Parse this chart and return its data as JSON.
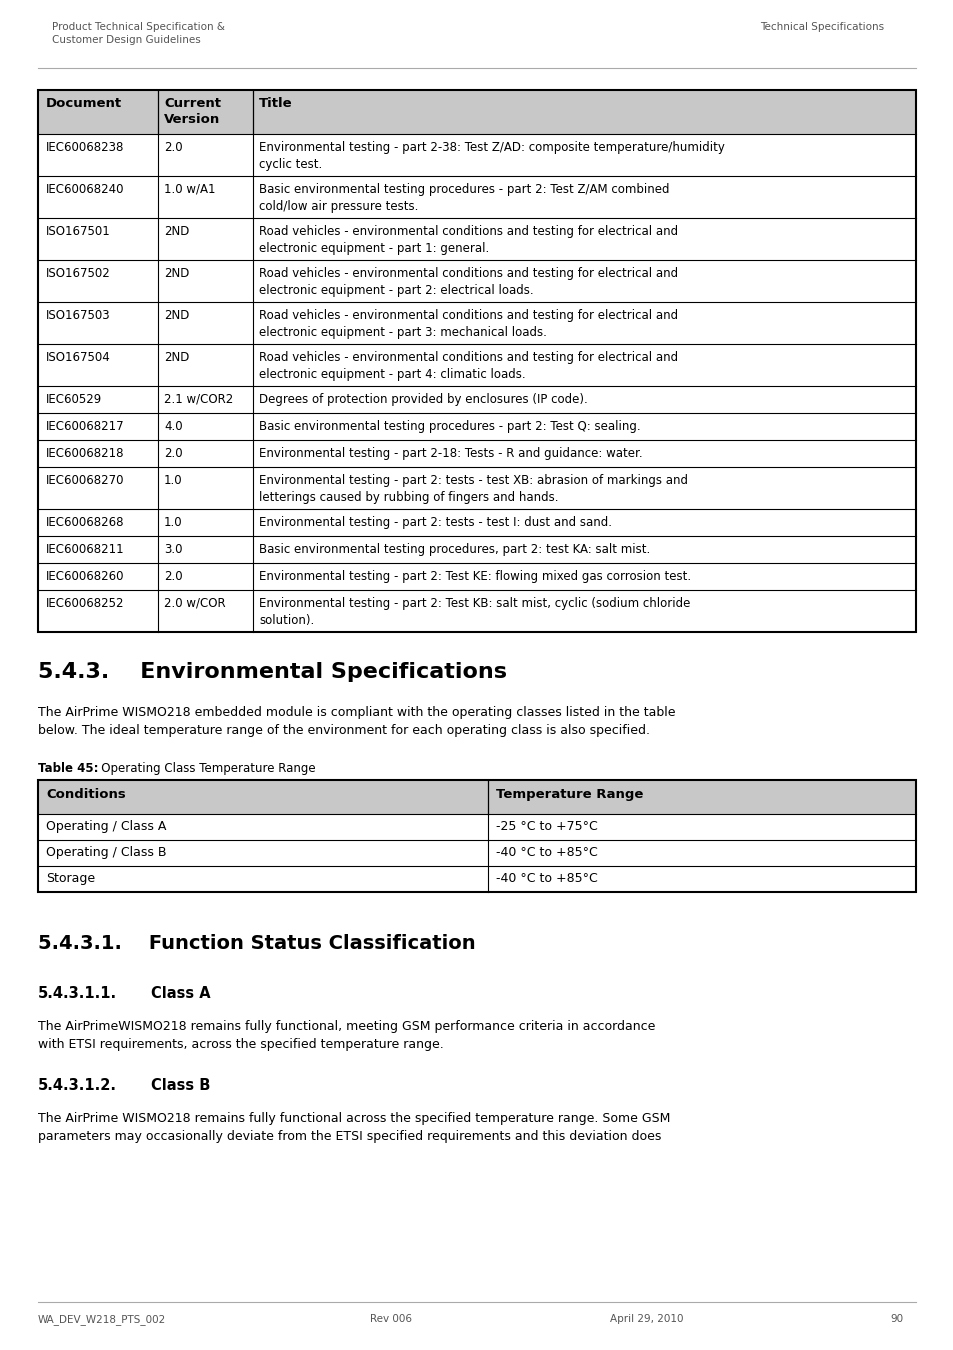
{
  "header_left": "Product Technical Specification &\nCustomer Design Guidelines",
  "header_right": "Technical Specifications",
  "footer_left": "WA_DEV_W218_PTS_002",
  "footer_center": "Rev 006",
  "footer_date": "April 29, 2010",
  "footer_page": "90",
  "table1_headers": [
    "Document",
    "Current\nVersion",
    "Title"
  ],
  "table1_rows": [
    [
      "IEC60068238",
      "2.0",
      "Environmental testing - part 2-38: Test Z/AD: composite temperature/humidity\ncyclic test."
    ],
    [
      "IEC60068240",
      "1.0 w/A1",
      "Basic environmental testing procedures - part 2: Test Z/AM combined\ncold/low air pressure tests."
    ],
    [
      "ISO167501",
      "2ND",
      "Road vehicles - environmental conditions and testing for electrical and\nelectronic equipment - part 1: general."
    ],
    [
      "ISO167502",
      "2ND",
      "Road vehicles - environmental conditions and testing for electrical and\nelectronic equipment - part 2: electrical loads."
    ],
    [
      "ISO167503",
      "2ND",
      "Road vehicles - environmental conditions and testing for electrical and\nelectronic equipment - part 3: mechanical loads."
    ],
    [
      "ISO167504",
      "2ND",
      "Road vehicles - environmental conditions and testing for electrical and\nelectronic equipment - part 4: climatic loads."
    ],
    [
      "IEC60529",
      "2.1 w/COR2",
      "Degrees of protection provided by enclosures (IP code)."
    ],
    [
      "IEC60068217",
      "4.0",
      "Basic environmental testing procedures - part 2: Test Q: sealing."
    ],
    [
      "IEC60068218",
      "2.0",
      "Environmental testing - part 2-18: Tests - R and guidance: water."
    ],
    [
      "IEC60068270",
      "1.0",
      "Environmental testing - part 2: tests - test XB: abrasion of markings and\nletterings caused by rubbing of fingers and hands."
    ],
    [
      "IEC60068268",
      "1.0",
      "Environmental testing - part 2: tests - test I: dust and sand."
    ],
    [
      "IEC60068211",
      "3.0",
      "Basic environmental testing procedures, part 2: test KA: salt mist."
    ],
    [
      "IEC60068260",
      "2.0",
      "Environmental testing - part 2: Test KE: flowing mixed gas corrosion test."
    ],
    [
      "IEC60068252",
      "2.0 w/COR",
      "Environmental testing - part 2: Test KB: salt mist, cyclic (sodium chloride\nsolution)."
    ]
  ],
  "section_title": "5.4.3.    Environmental Specifications",
  "section_body": "The AirPrime WISMO218 embedded module is compliant with the operating classes listed in the table\nbelow. The ideal temperature range of the environment for each operating class is also specified.",
  "table2_caption_bold": "Table 45:",
  "table2_caption_normal": "   Operating Class Temperature Range",
  "table2_headers": [
    "Conditions",
    "Temperature Range"
  ],
  "table2_rows": [
    [
      "Operating / Class A",
      "-25 °C to +75°C"
    ],
    [
      "Operating / Class B",
      "-40 °C to +85°C"
    ],
    [
      "Storage",
      "-40 °C to +85°C"
    ]
  ],
  "subsection_title": "5.4.3.1.    Function Status Classification",
  "sub_sub_title1": "5.4.3.1.1.",
  "sub_sub_title1b": "        Class A",
  "sub_sub_body1": "The AirPrimeWISMO218 remains fully functional, meeting GSM performance criteria in accordance\nwith ETSI requirements, across the specified temperature range.",
  "sub_sub_title2": "5.4.3.1.2.",
  "sub_sub_title2b": "        Class B",
  "sub_sub_body2": "The AirPrime WISMO218 remains fully functional across the specified temperature range. Some GSM\nparameters may occasionally deviate from the ETSI specified requirements and this deviation does",
  "header_bg": "#c8c8c8",
  "border_color": "#000000",
  "bg_color": "#ffffff",
  "header_text_color": "#555555",
  "footer_text_color": "#555555"
}
